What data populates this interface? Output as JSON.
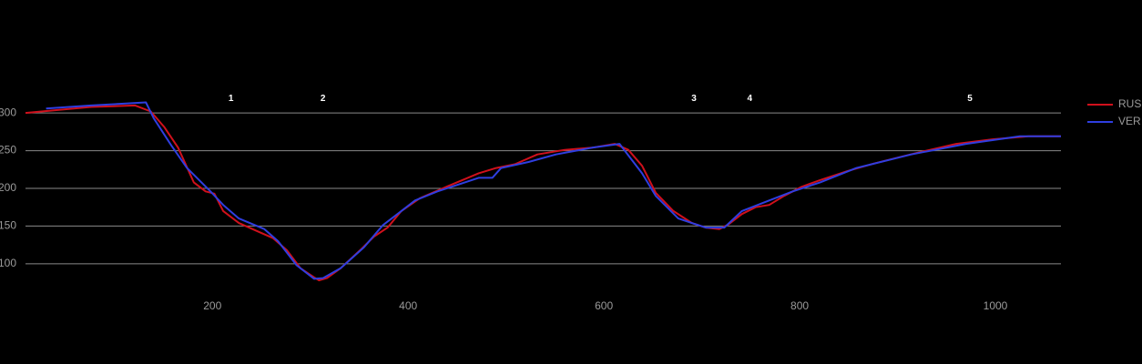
{
  "chart_data": {
    "type": "line",
    "xlim": [
      9,
      1067
    ],
    "ylim": [
      60,
      340
    ],
    "xticks": [
      200,
      400,
      600,
      800,
      1000
    ],
    "yticks": [
      100,
      150,
      200,
      250,
      300
    ],
    "grid": true,
    "legend": "right",
    "annotations": [
      {
        "x": 219,
        "y": 319,
        "label": "1"
      },
      {
        "x": 313,
        "y": 319,
        "label": "2"
      },
      {
        "x": 692,
        "y": 319,
        "label": "3"
      },
      {
        "x": 749,
        "y": 319,
        "label": "4"
      },
      {
        "x": 974,
        "y": 319,
        "label": "5"
      }
    ],
    "series": [
      {
        "name": "RUS",
        "color": "#d0101c",
        "x": [
          9,
          76,
          121,
          137,
          151,
          165,
          181,
          193,
          202,
          211,
          227,
          248,
          262,
          276,
          290,
          304,
          309,
          317,
          331,
          351,
          365,
          379,
          393,
          412,
          439,
          472,
          490,
          509,
          532,
          560,
          588,
          611,
          625,
          639,
          653,
          671,
          690,
          704,
          718,
          727,
          741,
          755,
          769,
          784,
          802,
          821,
          849,
          876,
          904,
          923,
          960,
          997,
          1034,
          1067
        ],
        "values": [
          300,
          308,
          310,
          302,
          281,
          254,
          208,
          196,
          193,
          170,
          154,
          142,
          134,
          118,
          94,
          82,
          78,
          81,
          94,
          118,
          136,
          148,
          170,
          187,
          202,
          220,
          227,
          232,
          245,
          251,
          254,
          259,
          251,
          230,
          194,
          170,
          154,
          148,
          146,
          152,
          166,
          175,
          178,
          190,
          202,
          211,
          223,
          233,
          242,
          248,
          259,
          265,
          269,
          269
        ]
      },
      {
        "name": "VER",
        "color": "#2f3ee0",
        "x": [
          30,
          76,
          132,
          140,
          158,
          174,
          198,
          211,
          227,
          253,
          267,
          286,
          304,
          313,
          331,
          355,
          374,
          393,
          407,
          430,
          458,
          472,
          486,
          495,
          523,
          551,
          588,
          616,
          639,
          653,
          676,
          704,
          723,
          741,
          765,
          793,
          821,
          858,
          914,
          970,
          1025,
          1067
        ],
        "values": [
          306,
          310,
          314,
          293,
          257,
          227,
          196,
          178,
          160,
          146,
          130,
          98,
          80,
          81,
          94,
          122,
          151,
          170,
          184,
          196,
          208,
          214,
          214,
          227,
          235,
          245,
          254,
          259,
          220,
          190,
          160,
          148,
          148,
          170,
          182,
          196,
          208,
          227,
          245,
          259,
          269,
          269
        ]
      }
    ]
  }
}
